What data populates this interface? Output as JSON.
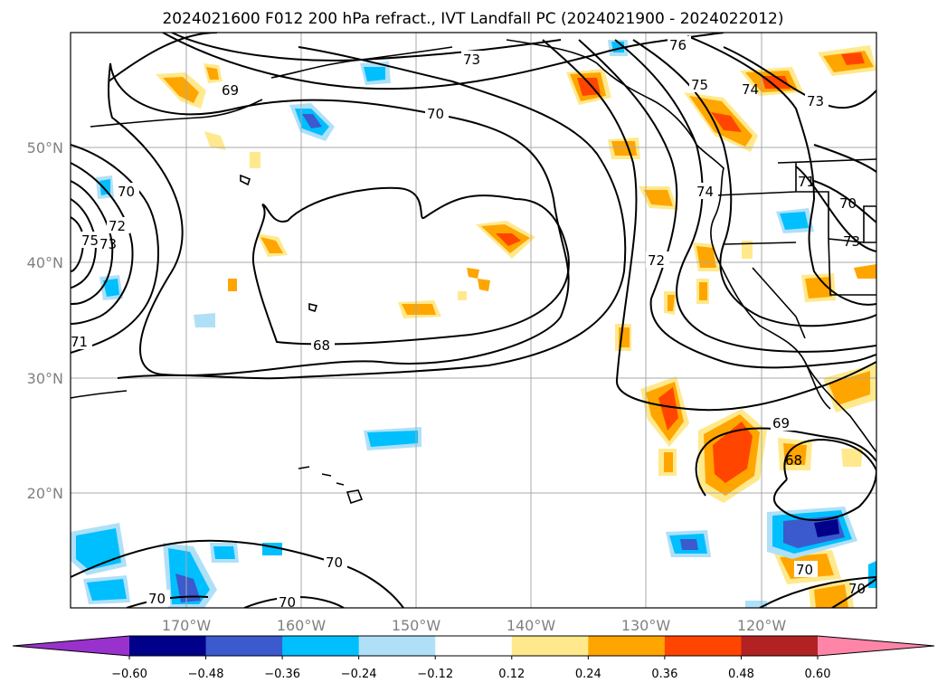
{
  "title": "2024021600 F012 200 hPa refract., IVT Landfall PC (2024021900 - 2024022012)",
  "lat_labels": [
    "50°N",
    "40°N",
    "30°N",
    "20°N"
  ],
  "lon_labels": [
    "170°W",
    "160°W",
    "150°W",
    "140°W",
    "130°W",
    "120°W"
  ],
  "colorbar": {
    "ticks": [
      "−0.60",
      "−0.48",
      "−0.36",
      "−0.24",
      "−0.12",
      "0.12",
      "0.24",
      "0.36",
      "0.48",
      "0.60"
    ],
    "colors": [
      "#9932cc",
      "#00008b",
      "#3a5acd",
      "#00bfff",
      "#afe0f8",
      "#ffffff",
      "#ffe98c",
      "#ffa500",
      "#ff4500",
      "#b22222",
      "#ff85a8"
    ]
  },
  "contour_labels": {
    "l76": "76",
    "l73a": "73",
    "l73b": "73",
    "l75a": "75",
    "l74a": "74",
    "l69a": "69",
    "l70a": "70",
    "l70b": "70",
    "l74b": "74",
    "l71a": "71",
    "l70c": "70",
    "l73c": "73",
    "l72a": "72",
    "l75b": "75",
    "l73d": "73",
    "l71b": "71",
    "l72b": "72",
    "l68a": "68",
    "l69b": "69",
    "l68b": "68",
    "l70d": "70",
    "l70e": "70",
    "l70f": "70",
    "l70g": "70",
    "l70h": "70"
  }
}
